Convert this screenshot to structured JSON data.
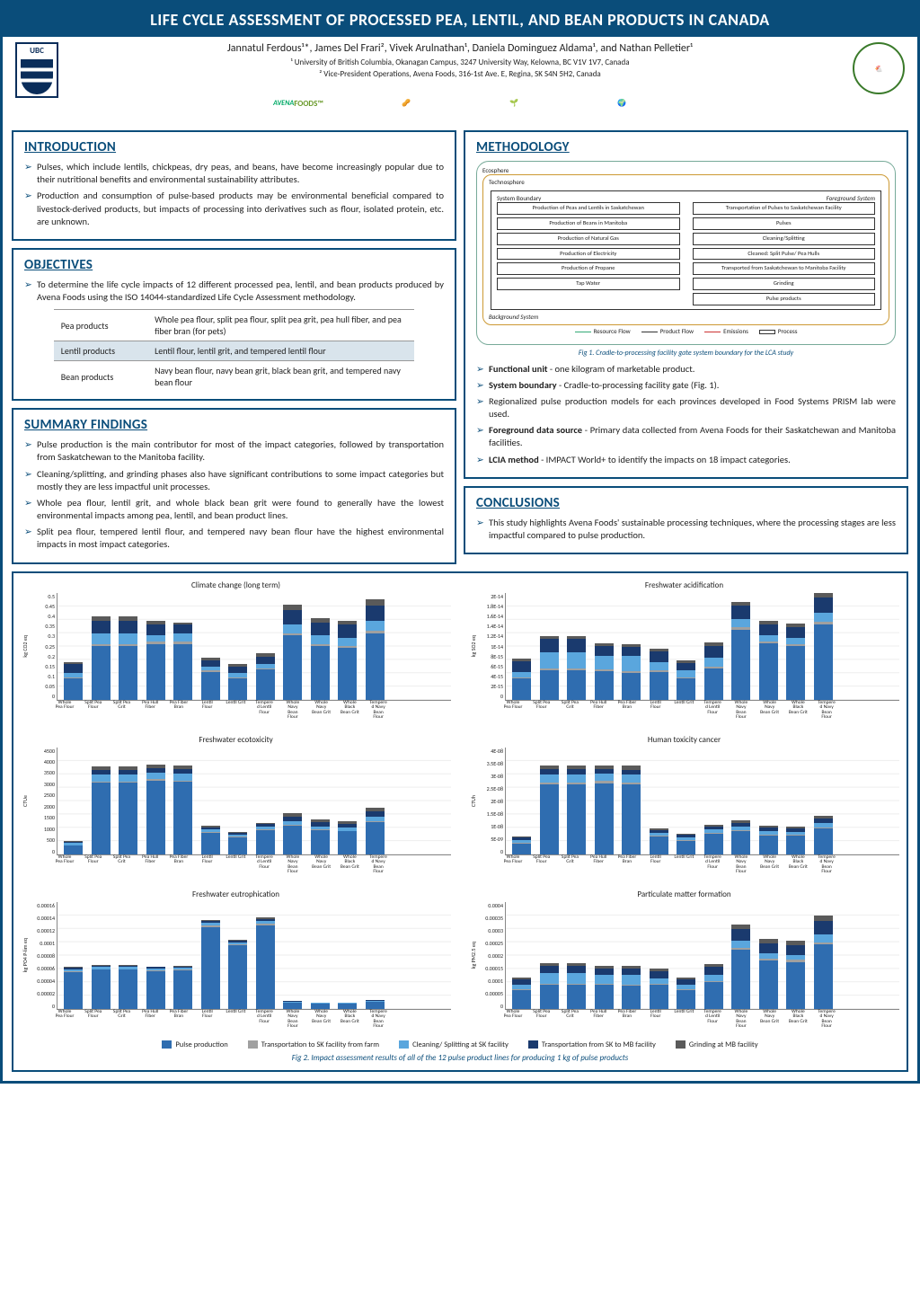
{
  "title": "LIFE CYCLE ASSESSMENT OF PROCESSED PEA, LENTIL, AND BEAN PRODUCTS IN CANADA",
  "authors": "Jannatul Ferdous¹*, James Del Frari², Vivek Arulnathan¹, Daniela Dominguez Aldama¹, and Nathan Pelletier¹",
  "affil1": "¹ University of British Columbia, Okanagan Campus, 3247 University Way, Kelowna, BC V1V 1V7, Canada",
  "affil2": "² Vice-President Operations, Avena Foods, 316-1st Ave. E, Regina, SK S4N 5H2, Canada",
  "sections": {
    "intro": {
      "h": "INTRODUCTION",
      "items": [
        "Pulses, which include lentils, chickpeas, dry peas, and beans, have become increasingly popular due to their nutritional benefits and environmental sustainability attributes.",
        "Production and consumption of pulse-based products may be environmental beneficial compared to livestock-derived products, but impacts of processing into derivatives such as flour, isolated protein, etc. are unknown."
      ]
    },
    "obj": {
      "h": "OBJECTIVES",
      "items": [
        "To determine the life cycle impacts of 12 different processed pea, lentil, and bean products produced by Avena Foods using the ISO 14044-standardized Life Cycle Assessment methodology."
      ]
    },
    "summary": {
      "h": "SUMMARY FINDINGS",
      "items": [
        "Pulse production is the main contributor for most of the impact categories, followed by transportation from Saskatchewan to the Manitoba facility.",
        "Cleaning/splitting, and grinding phases also have significant contributions to some impact categories but mostly they are less impactful unit processes.",
        "Whole pea flour, lentil grit, and whole black bean grit were found to generally have the lowest environmental impacts among pea, lentil, and bean product lines.",
        "Split pea flour, tempered lentil flour, and tempered navy bean flour have the highest environmental impacts in most impact categories."
      ]
    },
    "method": {
      "h": "METHODOLOGY",
      "items": [
        "<b>Functional unit</b> - one kilogram of marketable product.",
        "<b>System boundary</b> - Cradle-to-processing facility gate (Fig. 1).",
        "Regionalized pulse production models for each provinces developed in Food Systems PRISM lab were used.",
        "<b>Foreground data source</b> - Primary data collected from Avena Foods for their Saskatchewan and Manitoba facilities.",
        "<b>LCIA method</b> - IMPACT World+ to identify the impacts on 18 impact categories."
      ]
    },
    "concl": {
      "h": "CONCLUSIONS",
      "items": [
        "This study highlights Avena Foods' sustainable processing techniques, where the processing stages are less impactful compared to pulse production."
      ]
    }
  },
  "prod_table": [
    [
      "Pea products",
      "Whole pea flour, split pea flour, split pea grit, pea hull fiber, and pea fiber bran (for pets)"
    ],
    [
      "Lentil products",
      "Lentil flour, lentil grit, and tempered lentil flour"
    ],
    [
      "Bean products",
      "Navy bean flour, navy bean grit, black bean grit, and tempered navy bean flour"
    ]
  ],
  "fig1_cap": "Fig 1. Cradle-to-processing facility gate system boundary for the LCA study",
  "fig2_cap": "Fig 2. Impact assessment results of all of the 12 pulse product lines for producing 1 kg of pulse products",
  "diagram": {
    "eco": "Ecosphere",
    "tech": "Technosphere",
    "sys": "System Boundary",
    "fore": "Foreground System",
    "back": "Background System",
    "left": [
      "Production of Peas and Lentils in Saskatchewan",
      "Production of Beans in Manitoba",
      "Production of Natural Gas",
      "Production of Electricity",
      "Production of Propane",
      "Tap Water"
    ],
    "right": [
      "Transportation of Pulses to Saskatchewan Facility",
      "Pulses",
      "Cleaning/Splitting",
      "Cleaned: Split Pulse/ Pea Hulls",
      "Transported from Saskatchewan to Manitoba Facility",
      "Grinding",
      "Pulse products"
    ],
    "legend": [
      "Resource Flow",
      "Product Flow",
      "Emissions",
      "Process"
    ]
  },
  "stack_colors": {
    "pulse": "#2f6db0",
    "trans_sk": "#a0a0a0",
    "clean": "#5aa6dd",
    "trans_mb": "#1a3a6e",
    "grind": "#5a5a5a"
  },
  "products": [
    "Whole Pea Flour",
    "Split Pea Flour",
    "Split Pea Grit",
    "Pea Hull Fiber",
    "Pea Fiber Bran",
    "Lentil Flour",
    "Lentil Grit",
    "Tempered Lentil Flour",
    "Whole Navy Bean Flour",
    "Whole Navy Bean Grit",
    "Whole Black Bean Grit",
    "Tempered Navy Bean Flour"
  ],
  "charts": [
    {
      "title": "Climate change (long term)",
      "ylabel": "kg CO2 eq",
      "ymax": 0.5,
      "yticks": [
        "0.5",
        "0.45",
        "0.4",
        "0.35",
        "0.3",
        "0.25",
        "0.2",
        "0.15",
        "0.1",
        "0.05",
        "0"
      ],
      "data": [
        [
          0.1,
          0.005,
          0.02,
          0.04,
          0.01
        ],
        [
          0.25,
          0.01,
          0.05,
          0.06,
          0.02
        ],
        [
          0.25,
          0.01,
          0.05,
          0.06,
          0.02
        ],
        [
          0.26,
          0.01,
          0.03,
          0.05,
          0.02
        ],
        [
          0.26,
          0.01,
          0.04,
          0.04,
          0.01
        ],
        [
          0.13,
          0.005,
          0.02,
          0.03,
          0.01
        ],
        [
          0.1,
          0.005,
          0.02,
          0.03,
          0.01
        ],
        [
          0.14,
          0.005,
          0.02,
          0.035,
          0.015
        ],
        [
          0.3,
          0.01,
          0.04,
          0.07,
          0.025
        ],
        [
          0.25,
          0.01,
          0.04,
          0.06,
          0.02
        ],
        [
          0.24,
          0.01,
          0.04,
          0.06,
          0.02
        ],
        [
          0.31,
          0.01,
          0.05,
          0.07,
          0.03
        ]
      ]
    },
    {
      "title": "Freshwater acidification",
      "ylabel": "kg SO2 eq",
      "ymax": 2e-14,
      "yticks": [
        "2E-14",
        "1.8E-14",
        "1.6E-14",
        "1.4E-14",
        "1.2E-14",
        "1E-14",
        "8E-15",
        "6E-15",
        "4E-15",
        "2E-15",
        "0"
      ],
      "data": [
        [
          4e-15,
          2e-16,
          1e-15,
          2e-15,
          5e-16
        ],
        [
          5.5e-15,
          3e-16,
          3e-15,
          2.5e-15,
          6e-16
        ],
        [
          5.5e-15,
          3e-16,
          3e-15,
          2.5e-15,
          6e-16
        ],
        [
          5.3e-15,
          3e-16,
          2.5e-15,
          2e-15,
          5e-16
        ],
        [
          5e-15,
          3e-16,
          2.8e-15,
          1.8e-15,
          4e-16
        ],
        [
          5.2e-15,
          3e-16,
          1.5e-15,
          2e-15,
          5e-16
        ],
        [
          4e-15,
          2e-16,
          1.2e-15,
          1.5e-15,
          4e-16
        ],
        [
          5.8e-15,
          3e-16,
          1.8e-15,
          2.2e-15,
          6e-16
        ],
        [
          1.3e-14,
          5e-16,
          1.5e-15,
          2.5e-15,
          8e-16
        ],
        [
          1.05e-14,
          4e-16,
          1.2e-15,
          2e-15,
          6e-16
        ],
        [
          1e-14,
          4e-16,
          1.2e-15,
          2e-15,
          6e-16
        ],
        [
          1.4e-14,
          5e-16,
          1.8e-15,
          2.8e-15,
          9e-16
        ]
      ]
    },
    {
      "title": "Freshwater ecotoxicity",
      "ylabel": "CTUe",
      "ymax": 4500,
      "yticks": [
        "4500",
        "4000",
        "3500",
        "3000",
        "2500",
        "2000",
        "1500",
        "1000",
        "500",
        "0"
      ],
      "data": [
        [
          350,
          20,
          100,
          50,
          30
        ],
        [
          3000,
          50,
          300,
          200,
          150
        ],
        [
          3000,
          50,
          300,
          200,
          150
        ],
        [
          3100,
          50,
          280,
          180,
          140
        ],
        [
          3050,
          50,
          290,
          190,
          145
        ],
        [
          900,
          30,
          120,
          80,
          50
        ],
        [
          700,
          25,
          100,
          70,
          40
        ],
        [
          1000,
          35,
          140,
          90,
          60
        ],
        [
          1200,
          40,
          150,
          200,
          120
        ],
        [
          1000,
          35,
          130,
          180,
          100
        ],
        [
          950,
          35,
          125,
          170,
          95
        ],
        [
          1350,
          45,
          170,
          230,
          140
        ]
      ]
    },
    {
      "title": "Human toxicity cancer",
      "ylabel": "CTUh",
      "ymax": 4e-08,
      "yticks": [
        "4E-08",
        "3.5E-08",
        "3E-08",
        "2.5E-08",
        "2E-08",
        "1.5E-08",
        "1E-08",
        "5E-09",
        "0"
      ],
      "data": [
        [
          4e-09,
          3e-10,
          1e-09,
          8e-10,
          5e-10
        ],
        [
          2.6e-08,
          8e-10,
          3e-09,
          2e-09,
          1.5e-09
        ],
        [
          2.6e-08,
          8e-10,
          3e-09,
          2e-09,
          1.5e-09
        ],
        [
          2.65e-08,
          8e-10,
          2.8e-09,
          1.8e-09,
          1.4e-09
        ],
        [
          2.6e-08,
          8e-10,
          2.9e-09,
          1.9e-09,
          1.45e-09
        ],
        [
          6.5e-09,
          4e-10,
          1.2e-09,
          1e-09,
          6e-10
        ],
        [
          5e-09,
          3e-10,
          1e-09,
          8e-10,
          5e-10
        ],
        [
          7.5e-09,
          4e-10,
          1.4e-09,
          1.1e-09,
          7e-10
        ],
        [
          8.5e-09,
          5e-10,
          1.3e-09,
          1.5e-09,
          1e-09
        ],
        [
          7e-09,
          4e-10,
          1.1e-09,
          1.3e-09,
          8e-10
        ],
        [
          6.8e-09,
          4e-10,
          1.1e-09,
          1.25e-09,
          8e-10
        ],
        [
          9.5e-09,
          5e-10,
          1.5e-09,
          1.7e-09,
          1.1e-09
        ]
      ]
    },
    {
      "title": "Freshwater eutrophication",
      "ylabel": "kg PO4 P-lim eq",
      "ymax": 0.00016,
      "yticks": [
        "0.00016",
        "0.00014",
        "0.00012",
        "0.0001",
        "0.00008",
        "0.00006",
        "0.00004",
        "0.00002",
        "0"
      ],
      "data": [
        [
          5.5e-05,
          1e-06,
          3e-06,
          2e-06,
          1e-06
        ],
        [
          5.8e-05,
          1e-06,
          3e-06,
          2e-06,
          1e-06
        ],
        [
          5.8e-05,
          1e-06,
          3e-06,
          2e-06,
          1e-06
        ],
        [
          5.6e-05,
          1e-06,
          3e-06,
          2e-06,
          1e-06
        ],
        [
          5.7e-05,
          1e-06,
          3e-06,
          2e-06,
          1e-06
        ],
        [
          0.000122,
          2e-06,
          4e-06,
          3e-06,
          2e-06
        ],
        [
          9.5e-05,
          1.5e-06,
          3e-06,
          2.5e-06,
          1.5e-06
        ],
        [
          0.000125,
          2e-06,
          4e-06,
          3e-06,
          2e-06
        ],
        [
          9e-06,
          5e-07,
          1e-06,
          1e-06,
          5e-07
        ],
        [
          7e-06,
          4e-07,
          8e-07,
          8e-07,
          4e-07
        ],
        [
          7e-06,
          4e-07,
          8e-07,
          8e-07,
          4e-07
        ],
        [
          1e-05,
          5e-07,
          1e-06,
          1e-06,
          5e-07
        ]
      ]
    },
    {
      "title": "Particulate matter formation",
      "ylabel": "kg PM2.5 eq",
      "ymax": 0.0004,
      "yticks": [
        "0.0004",
        "0.00035",
        "0.0003",
        "0.00025",
        "0.0002",
        "0.00015",
        "0.0001",
        "0.00005",
        "0"
      ],
      "data": [
        [
          7e-05,
          3e-06,
          1.5e-05,
          2e-05,
          8e-06
        ],
        [
          9e-05,
          4e-06,
          4e-05,
          2.5e-05,
          1e-05
        ],
        [
          9e-05,
          4e-06,
          4e-05,
          2.5e-05,
          1e-05
        ],
        [
          8.8e-05,
          4e-06,
          3.5e-05,
          2.3e-05,
          9e-06
        ],
        [
          8.6e-05,
          4e-06,
          3.8e-05,
          2.2e-05,
          9e-06
        ],
        [
          9e-05,
          4e-06,
          2e-05,
          2.5e-05,
          1e-05
        ],
        [
          7e-05,
          3e-06,
          1.6e-05,
          2e-05,
          8e-06
        ],
        [
          0.0001,
          4e-06,
          2.3e-05,
          2.8e-05,
          1.1e-05
        ],
        [
          0.00022,
          8e-06,
          2.5e-05,
          4.5e-05,
          1.8e-05
        ],
        [
          0.00018,
          7e-06,
          2e-05,
          3.8e-05,
          1.5e-05
        ],
        [
          0.000175,
          7e-06,
          2e-05,
          3.7e-05,
          1.4e-05
        ],
        [
          0.00024,
          9e-06,
          2.8e-05,
          5e-05,
          2e-05
        ]
      ]
    }
  ],
  "chart_legend": [
    {
      "label": "Pulse production",
      "color": "#2f6db0"
    },
    {
      "label": "Transportation to SK facility from farm",
      "color": "#a0a0a0"
    },
    {
      "label": "Cleaning/ Splitting at SK facility",
      "color": "#5aa6dd"
    },
    {
      "label": "Transportation from SK to MB facility",
      "color": "#1a3a6e"
    },
    {
      "label": "Grinding at MB facility",
      "color": "#5a5a5a"
    }
  ]
}
